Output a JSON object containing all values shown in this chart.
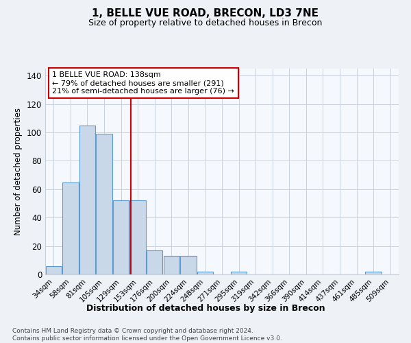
{
  "title1": "1, BELLE VUE ROAD, BRECON, LD3 7NE",
  "title2": "Size of property relative to detached houses in Brecon",
  "xlabel": "Distribution of detached houses by size in Brecon",
  "ylabel": "Number of detached properties",
  "bin_labels": [
    "34sqm",
    "58sqm",
    "81sqm",
    "105sqm",
    "129sqm",
    "153sqm",
    "176sqm",
    "200sqm",
    "224sqm",
    "248sqm",
    "271sqm",
    "295sqm",
    "319sqm",
    "342sqm",
    "366sqm",
    "390sqm",
    "414sqm",
    "437sqm",
    "461sqm",
    "485sqm",
    "509sqm"
  ],
  "bar_heights": [
    6,
    65,
    105,
    99,
    52,
    52,
    17,
    13,
    13,
    2,
    0,
    2,
    0,
    0,
    0,
    0,
    0,
    0,
    0,
    2,
    0
  ],
  "bar_color": "#c8d8e8",
  "bar_edge_color": "#5b9bd5",
  "property_size_idx": 4.58,
  "red_line_color": "#cc0000",
  "annotation_line1": "1 BELLE VUE ROAD: 138sqm",
  "annotation_line2": "← 79% of detached houses are smaller (291)",
  "annotation_line3": "21% of semi-detached houses are larger (76) →",
  "ylim": [
    0,
    145
  ],
  "yticks": [
    0,
    20,
    40,
    60,
    80,
    100,
    120,
    140
  ],
  "footer1": "Contains HM Land Registry data © Crown copyright and database right 2024.",
  "footer2": "Contains public sector information licensed under the Open Government Licence v3.0.",
  "background_color": "#eef2f7",
  "plot_bg_color": "#f5f8fc",
  "grid_color": "#c8d0dc"
}
